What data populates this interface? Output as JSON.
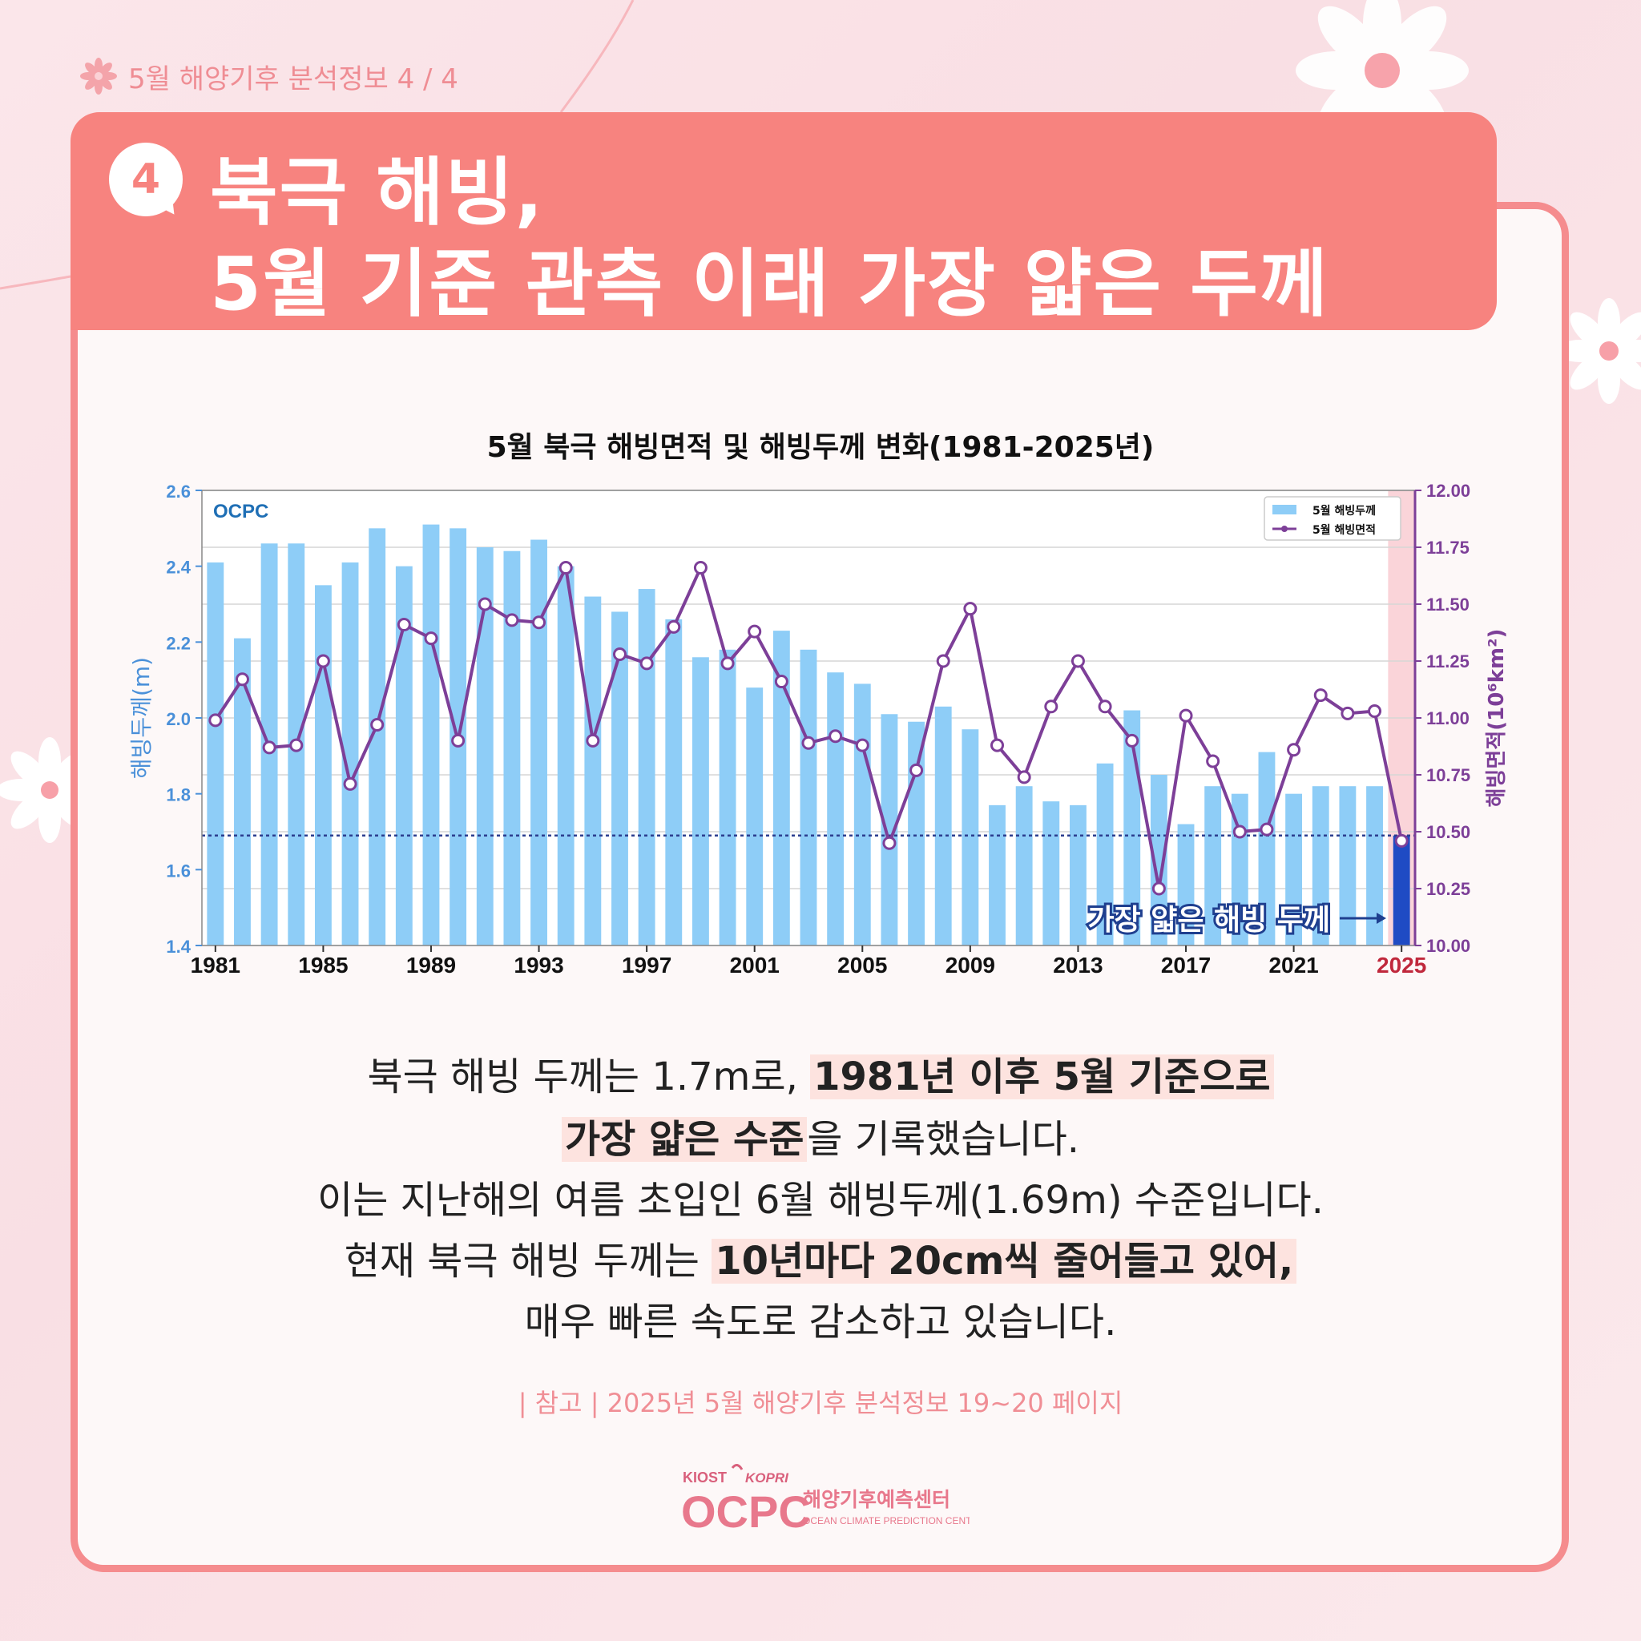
{
  "header": {
    "label": "5월 해양기후 분석정보 4 / 4"
  },
  "banner": {
    "number": "4",
    "title_line1": "북극 해빙,",
    "title_line2": "5월 기준 관측 이래 가장 얇은 두께"
  },
  "colors": {
    "bar": "#8ecdf7",
    "bar_highlight": "#1f4bc4",
    "line": "#7d3f98",
    "accent": "#f7837f",
    "year_highlight": "#c0283c"
  },
  "chart_data": {
    "type": "bar",
    "title": "5월 북극 해빙면적 및 해빙두께 변화(1981-2025년)",
    "watermark": "OCPC",
    "xlabel": "",
    "ylabel": "해빙두께(m)",
    "y2label": "해빙면적(10⁶km²)",
    "ylim": [
      1.4,
      2.6
    ],
    "y2lim": [
      10.0,
      12.0
    ],
    "yticks": [
      "1.4",
      "1.6",
      "1.8",
      "2.0",
      "2.2",
      "2.4",
      "2.6"
    ],
    "y2ticks": [
      "10.00",
      "10.25",
      "10.50",
      "10.75",
      "11.00",
      "11.25",
      "11.50",
      "11.75",
      "12.00"
    ],
    "xticks": [
      "1981",
      "1985",
      "1989",
      "1993",
      "1997",
      "2001",
      "2005",
      "2009",
      "2013",
      "2017",
      "2021",
      "2025"
    ],
    "years": [
      1981,
      1982,
      1983,
      1984,
      1985,
      1986,
      1987,
      1988,
      1989,
      1990,
      1991,
      1992,
      1993,
      1994,
      1995,
      1996,
      1997,
      1998,
      1999,
      2000,
      2001,
      2002,
      2003,
      2004,
      2005,
      2006,
      2007,
      2008,
      2009,
      2010,
      2011,
      2012,
      2013,
      2014,
      2015,
      2016,
      2017,
      2018,
      2019,
      2020,
      2021,
      2022,
      2023,
      2024,
      2025
    ],
    "series": [
      {
        "name": "5월 해빙두께",
        "kind": "bar",
        "values": [
          2.41,
          2.21,
          2.46,
          2.46,
          2.35,
          2.41,
          2.5,
          2.4,
          2.51,
          2.5,
          2.45,
          2.44,
          2.47,
          2.4,
          2.32,
          2.28,
          2.34,
          2.26,
          2.16,
          2.18,
          2.08,
          2.23,
          2.18,
          2.12,
          2.09,
          2.01,
          1.99,
          2.03,
          1.97,
          1.77,
          1.82,
          1.78,
          1.77,
          1.88,
          2.02,
          1.85,
          1.72,
          1.82,
          1.8,
          1.91,
          1.8,
          1.82,
          1.82,
          1.82,
          1.69
        ]
      },
      {
        "name": "5월 해빙면적",
        "kind": "line",
        "values": [
          10.99,
          11.17,
          10.87,
          10.88,
          11.25,
          10.71,
          10.97,
          11.41,
          11.35,
          10.9,
          11.5,
          11.43,
          11.42,
          11.66,
          10.9,
          11.28,
          11.24,
          11.4,
          11.66,
          11.24,
          11.38,
          11.16,
          10.89,
          10.92,
          10.88,
          10.45,
          10.77,
          11.25,
          11.48,
          10.88,
          10.74,
          11.05,
          11.25,
          11.05,
          10.9,
          10.25,
          11.01,
          10.81,
          10.5,
          10.51,
          10.86,
          11.1,
          11.02,
          11.03,
          10.46
        ]
      }
    ],
    "reference_line": 1.69,
    "annotation": "가장 얇은 해빙 두께",
    "highlight_year": "2025",
    "legend_position": "top-right"
  },
  "body": {
    "line1_plain": "북극 해빙 두께는 1.7m로, ",
    "line1_hl": "1981년 이후 5월 기준으로",
    "line2_hl": "가장 얇은 수준",
    "line2_plain": "을 기록했습니다.",
    "line3": "이는 지난해의 여름 초입인 6월 해빙두께(1.69m) 수준입니다.",
    "line4_plain": "현재 북극 해빙 두께는 ",
    "line4_hl": "10년마다 20cm씩 줄어들고 있어,",
    "line5": "매우 빠른 속도로 감소하고 있습니다."
  },
  "reference": "| 참고 |  2025년 5월 해양기후 분석정보 19~20 페이지",
  "logo": {
    "kiost": "KIOST",
    "kopri": "KOPRI",
    "ocpc": "OCPC",
    "korean": "해양기후예측센터",
    "english": "OCEAN CLIMATE PREDICTION CENTER"
  }
}
